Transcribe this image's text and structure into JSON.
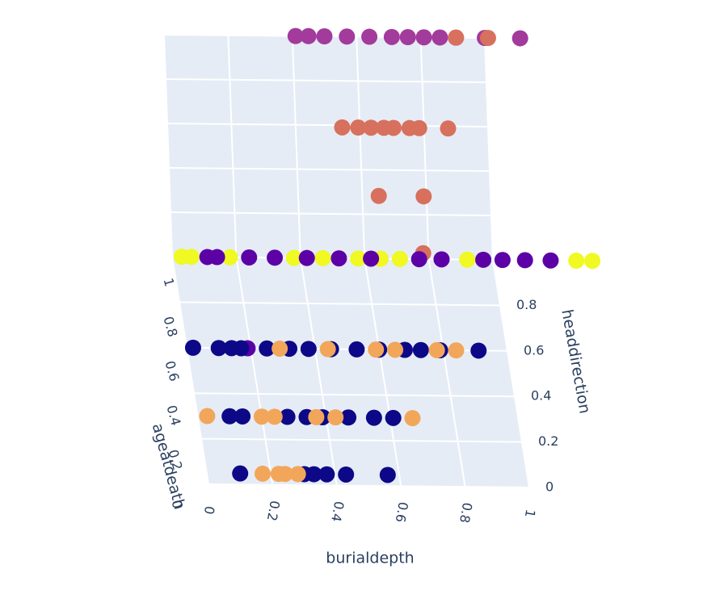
{
  "chart_data": {
    "type": "scatter3d",
    "xlabel": "burialdepth",
    "ylabel": "headdirection",
    "zlabel": "ageatdeath",
    "xlim": [
      0,
      1
    ],
    "ylim": [
      0,
      1
    ],
    "zlim": [
      0,
      1
    ],
    "xticks": [
      0,
      0.2,
      0.4,
      0.6,
      0.8,
      1
    ],
    "yticks": [
      0,
      0.2,
      0.4,
      0.6,
      0.8
    ],
    "zticks": [
      0,
      0.2,
      0.4,
      0.6,
      0.8,
      1
    ],
    "series": [
      {
        "color": "#a23b9c",
        "x": [
          0.41,
          0.45,
          0.5,
          0.57,
          0.64,
          0.71,
          0.76,
          0.81,
          0.86,
          0.91,
          1.0,
          1.11
        ],
        "y": [
          1,
          1,
          1,
          1,
          1,
          1,
          1,
          1,
          1,
          1,
          1,
          1
        ],
        "z": [
          1,
          1,
          1,
          1,
          1,
          1,
          1,
          1,
          1,
          1,
          1,
          1
        ]
      },
      {
        "color": "#d8705e",
        "x": [
          0.59,
          0.73,
          0.7,
          0.51,
          0.56,
          0.6,
          0.64,
          0.67,
          0.72,
          0.75,
          0.84,
          0.91,
          1.01
        ],
        "y": [
          0.3,
          0.3,
          0.05,
          0.6,
          0.6,
          0.6,
          0.6,
          0.6,
          0.6,
          0.6,
          0.6,
          1,
          1
        ],
        "z": [
          1,
          1,
          1,
          1,
          1,
          1,
          1,
          1,
          1,
          1,
          1,
          1,
          1
        ]
      },
      {
        "color": "#f0f921",
        "x": [
          0.03,
          0.06,
          0.18,
          0.38,
          0.47,
          0.58,
          0.65,
          0.71,
          0.92,
          1.26,
          1.31
        ],
        "y": [
          1,
          1,
          1,
          1,
          1,
          1,
          1,
          1,
          1,
          1,
          1
        ],
        "z": [
          0,
          0,
          0,
          0,
          0,
          0,
          0,
          0,
          0,
          0,
          0
        ]
      },
      {
        "color": "#5c01a6",
        "x": [
          0.19,
          0.11,
          0.14,
          0.24,
          0.32,
          0.42,
          0.52,
          0.62,
          0.77,
          0.84,
          0.97,
          1.03,
          1.1,
          1.18
        ],
        "y": [
          0.6,
          1,
          1,
          1,
          1,
          1,
          1,
          1,
          1,
          1,
          1,
          1,
          1,
          1
        ],
        "z": [
          0,
          0,
          0,
          0,
          0,
          0,
          0,
          0,
          0,
          0,
          0,
          0,
          0,
          0
        ]
      },
      {
        "color": "#0d0887",
        "x": [
          0.1,
          0.3,
          0.33,
          0.37,
          0.43,
          0.56,
          0.1,
          0.14,
          0.28,
          0.34,
          0.39,
          0.47,
          0.55,
          0.61,
          0.02,
          0.1,
          0.14,
          0.17,
          0.25,
          0.32,
          0.38,
          0.45,
          0.53,
          0.6,
          0.68,
          0.73,
          0.79,
          0.91
        ],
        "y": [
          0,
          0,
          0,
          0,
          0,
          0,
          0.3,
          0.3,
          0.3,
          0.3,
          0.3,
          0.3,
          0.3,
          0.3,
          0.6,
          0.6,
          0.6,
          0.6,
          0.6,
          0.6,
          0.6,
          0.6,
          0.6,
          0.6,
          0.6,
          0.6,
          0.6,
          0.6
        ],
        "z": [
          0.05,
          0.05,
          0.05,
          0.05,
          0.05,
          0.05,
          0,
          0,
          0,
          0,
          0,
          0,
          0,
          0,
          0,
          0,
          0,
          0,
          0,
          0,
          0,
          0,
          0,
          0,
          0,
          0,
          0,
          0
        ]
      },
      {
        "color": "#f2a65a",
        "x": [
          0.17,
          0.22,
          0.24,
          0.28,
          0.03,
          0.2,
          0.24,
          0.37,
          0.43,
          0.67,
          0.29,
          0.44,
          0.59,
          0.65,
          0.78,
          0.84
        ],
        "y": [
          0,
          0,
          0,
          0,
          0.3,
          0.3,
          0.3,
          0.3,
          0.3,
          0.3,
          0.6,
          0.6,
          0.6,
          0.6,
          0.6,
          0.6
        ],
        "z": [
          0.05,
          0.05,
          0.05,
          0.05,
          0,
          0,
          0,
          0,
          0,
          0,
          0,
          0,
          0,
          0,
          0,
          0
        ]
      }
    ]
  }
}
